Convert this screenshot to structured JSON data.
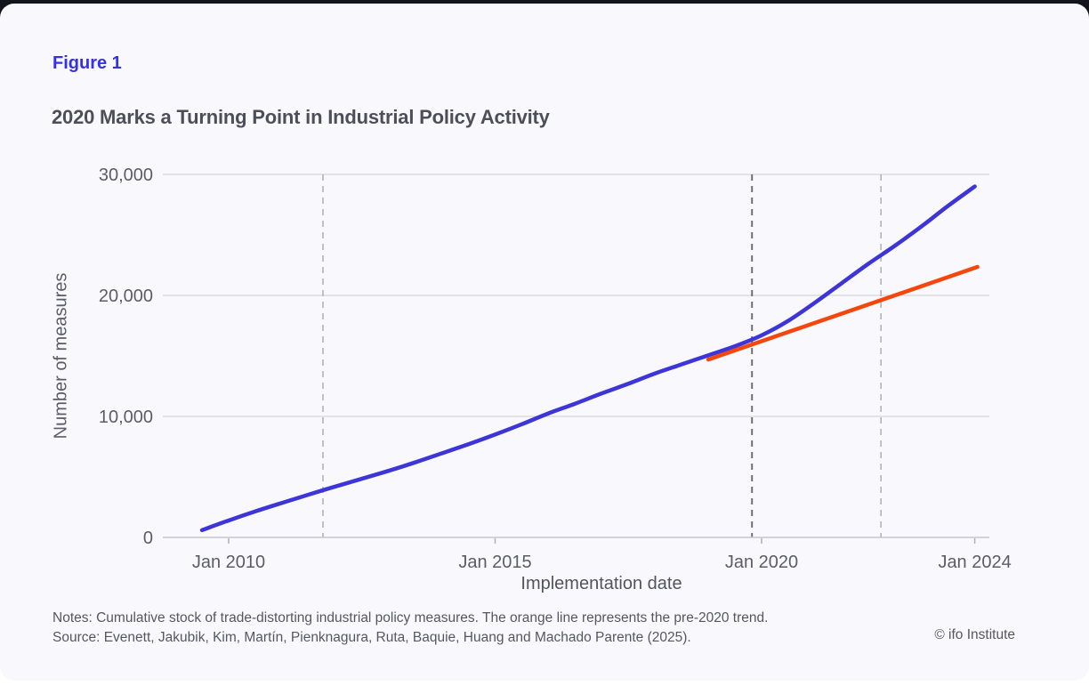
{
  "figure": {
    "label": "Figure 1",
    "title": "2020 Marks a Turning Point in Industrial Policy Activity",
    "notes": "Notes: Cumulative stock of trade-distorting industrial policy measures. The orange line represents the pre-2020 trend.",
    "source": "Source: Evenett, Jakubik, Kim, Martín, Pienknagura, Ruta, Baquie, Huang and Machado Parente (2025).",
    "copyright": "© ifo Institute",
    "accent_color": "#3431e8"
  },
  "chart_data": {
    "type": "line",
    "title": "2020 Marks a Turning Point in Industrial Policy Activity",
    "xlabel": "Implementation date",
    "ylabel": "Number of measures",
    "x_unit": "decimal_year",
    "xlim": [
      2008.77,
      2024.27
    ],
    "ylim": [
      0,
      30000
    ],
    "grid": "horizontal",
    "legend": "none",
    "x_ticks": [
      {
        "value": 2010,
        "label": "Jan 2010"
      },
      {
        "value": 2015,
        "label": "Jan 2015"
      },
      {
        "value": 2020,
        "label": "Jan 2020"
      },
      {
        "value": 2024,
        "label": "Jan 2024"
      }
    ],
    "y_ticks": [
      {
        "value": 0,
        "label": "0"
      },
      {
        "value": 10000,
        "label": "10,000"
      },
      {
        "value": 20000,
        "label": "20,000"
      },
      {
        "value": 30000,
        "label": "30,000"
      }
    ],
    "vlines": [
      {
        "x": 2011.77,
        "style": "light"
      },
      {
        "x": 2019.82,
        "style": "dark"
      },
      {
        "x": 2022.24,
        "style": "light"
      }
    ],
    "series": [
      {
        "name": "Cumulative stock of industrial policy measures",
        "color": "#3d35d8",
        "points": [
          [
            2009.5,
            600
          ],
          [
            2010,
            1400
          ],
          [
            2010.5,
            2150
          ],
          [
            2011,
            2850
          ],
          [
            2011.77,
            3900
          ],
          [
            2012.5,
            4850
          ],
          [
            2013,
            5500
          ],
          [
            2013.5,
            6200
          ],
          [
            2014,
            6950
          ],
          [
            2014.5,
            7700
          ],
          [
            2015,
            8500
          ],
          [
            2015.5,
            9350
          ],
          [
            2016,
            10250
          ],
          [
            2016.5,
            11050
          ],
          [
            2017,
            11900
          ],
          [
            2017.5,
            12700
          ],
          [
            2018,
            13550
          ],
          [
            2018.5,
            14300
          ],
          [
            2019,
            15050
          ],
          [
            2019.5,
            15800
          ],
          [
            2020,
            16700
          ],
          [
            2020.5,
            17900
          ],
          [
            2021,
            19400
          ],
          [
            2021.5,
            21000
          ],
          [
            2022,
            22600
          ],
          [
            2022.5,
            24100
          ],
          [
            2023,
            25700
          ],
          [
            2023.5,
            27400
          ],
          [
            2024,
            29000
          ]
        ]
      },
      {
        "name": "Pre-2020 trend",
        "color": "#f4470e",
        "points": [
          [
            2019,
            14700
          ],
          [
            2024.05,
            22350
          ]
        ]
      }
    ],
    "colors": {
      "background": "#f9f9fd",
      "gridline": "#d4d4dd",
      "axis": "#c6c6ce",
      "tick_mark": "#b0b0ba",
      "tick_label": "#5c5c66",
      "vline_light": "#b2b2bc",
      "vline_dark": "#6e6e78"
    }
  }
}
